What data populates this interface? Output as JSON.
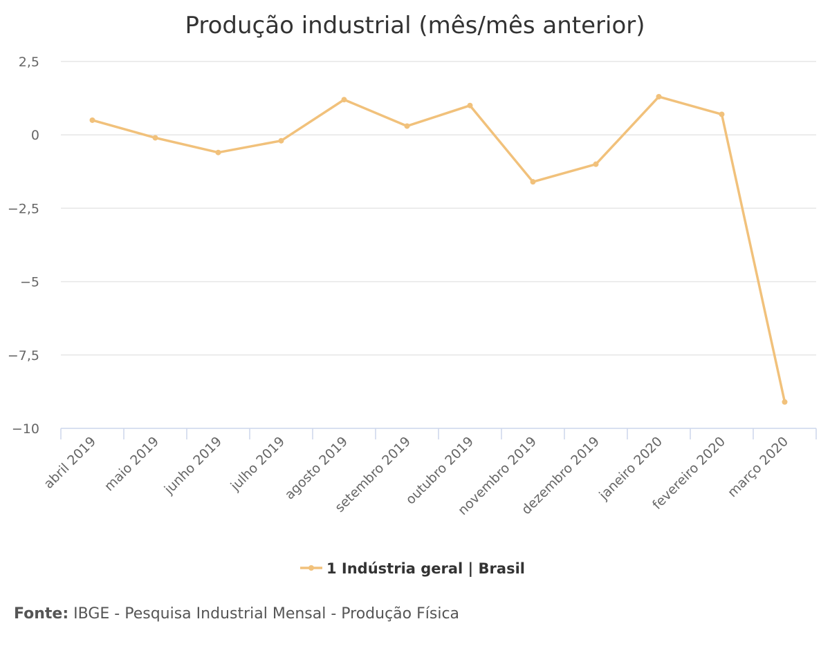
{
  "chart_data": {
    "type": "line",
    "title": "Produção industrial (mês/mês anterior)",
    "categories": [
      "abril 2019",
      "maio 2019",
      "junho 2019",
      "julho 2019",
      "agosto 2019",
      "setembro 2019",
      "outubro 2019",
      "novembro 2019",
      "dezembro 2019",
      "janeiro 2020",
      "fevereiro 2020",
      "março 2020"
    ],
    "series": [
      {
        "name": "1 Indústria geral | Brasil",
        "values": [
          0.5,
          -0.1,
          -0.6,
          -0.2,
          1.2,
          0.3,
          1.0,
          -1.6,
          -1.0,
          1.3,
          0.7,
          -9.1
        ],
        "color": "#f1c17b"
      }
    ],
    "yticks": [
      "2,5",
      "0",
      "−2,5",
      "−5",
      "−7,5",
      "−10"
    ],
    "ylim": [
      -10,
      2.5
    ],
    "grid": true,
    "legend_position": "bottom-center"
  },
  "source": {
    "label": "Fonte:",
    "text": "IBGE - Pesquisa Industrial Mensal - Produção Física"
  }
}
